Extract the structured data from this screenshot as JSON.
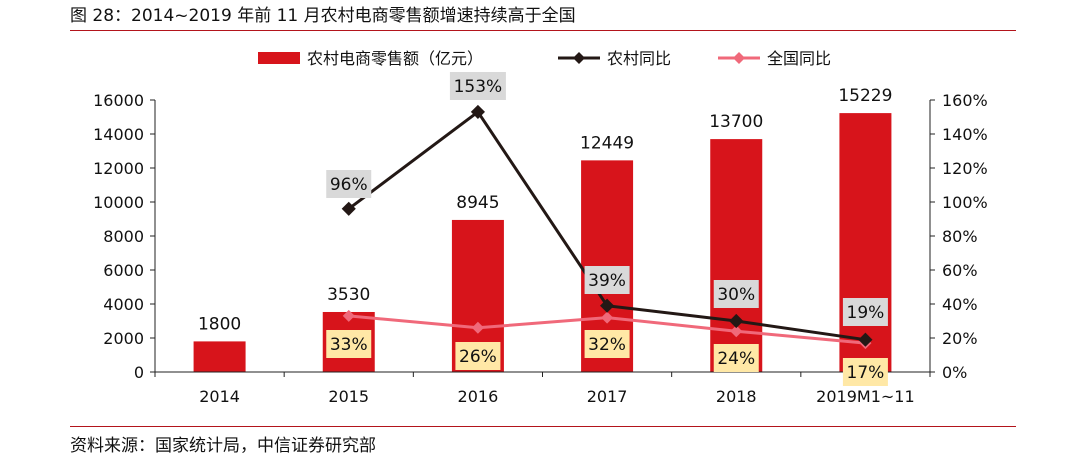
{
  "title": "图 28：2014~2019 年前 11 月农村电商零售额增速持续高于全国",
  "source": "资料来源：国家统计局，中信证券研究部",
  "chart_data": {
    "type": "bar",
    "title": "图 28：2014~2019 年前 11 月农村电商零售额增速持续高于全国",
    "categories": [
      "2014",
      "2015",
      "2016",
      "2017",
      "2018",
      "2019M1~11"
    ],
    "ylim": [
      0,
      16000
    ],
    "yticks": [
      "0",
      "2000",
      "4000",
      "6000",
      "8000",
      "10000",
      "12000",
      "14000",
      "16000"
    ],
    "y2lim": [
      0,
      160
    ],
    "y2ticks": [
      "0%",
      "20%",
      "40%",
      "60%",
      "80%",
      "100%",
      "120%",
      "140%",
      "160%"
    ],
    "legend_position": "top",
    "series": [
      {
        "name": "农村电商零售额（亿元）",
        "type": "bar",
        "axis": "left",
        "color": "#d7141b",
        "values": [
          1800,
          3530,
          8945,
          12449,
          13700,
          15229
        ],
        "labels": [
          "1800",
          "3530",
          "8945",
          "12449",
          "13700",
          "15229"
        ]
      },
      {
        "name": "农村同比",
        "type": "line",
        "axis": "right",
        "color": "#231815",
        "values": [
          null,
          96,
          153,
          39,
          30,
          19
        ],
        "labels": [
          "",
          "96%",
          "153%",
          "39%",
          "30%",
          "19%"
        ]
      },
      {
        "name": "全国同比",
        "type": "line",
        "axis": "right",
        "color": "#f0697a",
        "values": [
          null,
          33,
          26,
          32,
          24,
          17
        ],
        "labels": [
          "",
          "33%",
          "26%",
          "32%",
          "24%",
          "17%"
        ]
      }
    ]
  }
}
